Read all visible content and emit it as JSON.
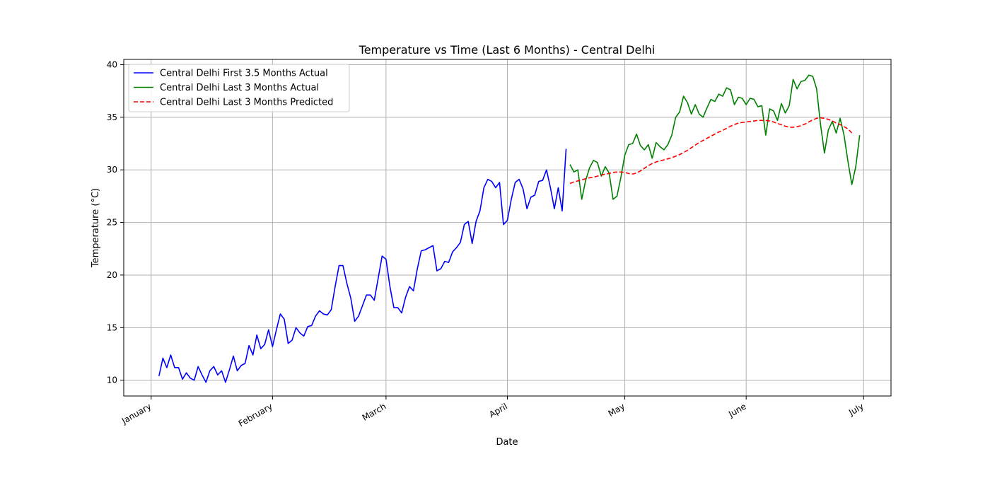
{
  "chart_data": {
    "type": "line",
    "title": "Temperature vs Time (Last 6 Months) - Central Delhi",
    "xlabel": "Date",
    "ylabel": "Temperature (°C)",
    "grid": true,
    "legend_position": "top-left",
    "xlim": [
      "2023-12-25",
      "2024-07-08"
    ],
    "ylim": [
      8.5,
      40.5
    ],
    "x_ticks": [
      {
        "date": "2024-01-01",
        "label": "January"
      },
      {
        "date": "2024-02-01",
        "label": "February"
      },
      {
        "date": "2024-03-01",
        "label": "March"
      },
      {
        "date": "2024-04-01",
        "label": "April"
      },
      {
        "date": "2024-05-01",
        "label": "May"
      },
      {
        "date": "2024-06-01",
        "label": "June"
      },
      {
        "date": "2024-07-01",
        "label": "July"
      }
    ],
    "y_ticks": [
      10,
      15,
      20,
      25,
      30,
      35,
      40
    ],
    "series": [
      {
        "name": "Central Delhi First 3.5 Months Actual",
        "color": "#0000ff",
        "dash": "solid",
        "start_date": "2024-01-03",
        "values": [
          10.4,
          12.1,
          11.2,
          12.4,
          11.2,
          11.2,
          10.1,
          10.7,
          10.2,
          10.0,
          11.3,
          10.5,
          9.8,
          10.9,
          11.3,
          10.5,
          10.9,
          9.8,
          11.0,
          12.3,
          10.9,
          11.4,
          11.6,
          13.3,
          12.4,
          14.3,
          13.0,
          13.4,
          14.8,
          13.2,
          14.8,
          16.3,
          15.8,
          13.5,
          13.8,
          15.0,
          14.5,
          14.2,
          15.1,
          15.2,
          16.1,
          16.6,
          16.3,
          16.2,
          16.7,
          18.9,
          20.9,
          20.9,
          19.2,
          17.8,
          15.6,
          16.1,
          17.1,
          18.1,
          18.1,
          17.6,
          19.7,
          21.8,
          21.5,
          18.9,
          16.9,
          16.9,
          16.4,
          17.9,
          18.9,
          18.5,
          20.6,
          22.3,
          22.4,
          22.6,
          22.8,
          20.4,
          20.6,
          21.3,
          21.2,
          22.2,
          22.6,
          23.1,
          24.8,
          25.1,
          23.0,
          25.1,
          26.1,
          28.3,
          29.1,
          28.9,
          28.3,
          28.8,
          24.8,
          25.2,
          27.2,
          28.8,
          29.1,
          28.2,
          26.3,
          27.4,
          27.6,
          28.9,
          29.0,
          30.0,
          28.3,
          26.3,
          28.3,
          26.1,
          32.0
        ]
      },
      {
        "name": "Central Delhi Last 3 Months Actual",
        "color": "#008000",
        "dash": "solid",
        "start_date": "2024-04-17",
        "values": [
          30.5,
          29.8,
          30.0,
          27.2,
          29.0,
          30.2,
          30.9,
          30.7,
          29.4,
          30.3,
          29.7,
          27.2,
          27.5,
          29.3,
          31.4,
          32.4,
          32.5,
          33.4,
          32.3,
          31.9,
          32.4,
          31.1,
          32.6,
          32.2,
          31.9,
          32.4,
          33.3,
          35.0,
          35.5,
          37.0,
          36.4,
          35.3,
          36.2,
          35.3,
          35.0,
          35.9,
          36.7,
          36.5,
          37.2,
          37.0,
          37.8,
          37.6,
          36.2,
          36.9,
          36.8,
          36.2,
          36.8,
          36.7,
          36.0,
          36.1,
          33.3,
          35.8,
          35.6,
          34.7,
          36.3,
          35.4,
          36.1,
          38.6,
          37.7,
          38.4,
          38.5,
          39.0,
          38.9,
          37.7,
          34.3,
          31.6,
          33.8,
          34.6,
          33.5,
          34.9,
          33.3,
          30.8,
          28.6,
          30.3,
          33.3
        ]
      },
      {
        "name": "Central Delhi Last 3 Months Predicted",
        "color": "#ff0000",
        "dash": "dashed",
        "start_date": "2024-04-17",
        "values": [
          28.7,
          28.85,
          28.95,
          29.05,
          29.15,
          29.25,
          29.3,
          29.4,
          29.5,
          29.6,
          29.65,
          29.75,
          29.8,
          29.8,
          29.75,
          29.65,
          29.6,
          29.7,
          29.9,
          30.15,
          30.4,
          30.6,
          30.75,
          30.85,
          30.95,
          31.05,
          31.15,
          31.3,
          31.45,
          31.65,
          31.85,
          32.1,
          32.35,
          32.6,
          32.8,
          33.0,
          33.2,
          33.4,
          33.6,
          33.75,
          33.95,
          34.15,
          34.3,
          34.45,
          34.5,
          34.55,
          34.6,
          34.65,
          34.7,
          34.7,
          34.7,
          34.65,
          34.55,
          34.4,
          34.3,
          34.15,
          34.05,
          34.05,
          34.1,
          34.2,
          34.35,
          34.55,
          34.75,
          34.9,
          34.95,
          34.9,
          34.8,
          34.65,
          34.45,
          34.3,
          34.1,
          33.9,
          33.5
        ]
      }
    ]
  }
}
